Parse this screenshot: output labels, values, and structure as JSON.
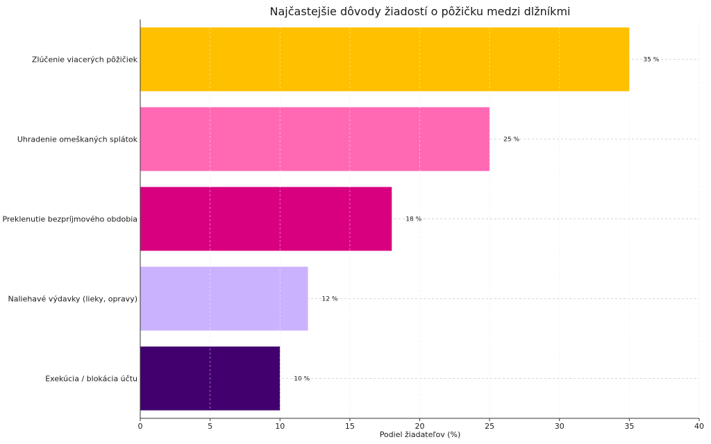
{
  "chart_data": {
    "type": "bar",
    "orientation": "horizontal",
    "title": "Najčastejšie dôvody žiadostí o pôžičku medzi dlžníkmi",
    "xlabel": "Podiel žiadateľov (%)",
    "ylabel": "",
    "xlim": [
      0,
      40
    ],
    "xticks": [
      0,
      5,
      10,
      15,
      20,
      25,
      30,
      35,
      40
    ],
    "grid": true,
    "legend": "none",
    "categories": [
      "Zlúčenie viacerých pôžičiek",
      "Uhradenie omeškaných splátok",
      "Preklenutie bezpríjmového obdobia",
      "Naliehavé výdavky (lieky, opravy)",
      "Exekúcia / blokácia účtu"
    ],
    "values": [
      35,
      25,
      18,
      12,
      10
    ],
    "data_labels": [
      "35 %",
      "25 %",
      "18 %",
      "12 %",
      "10 %"
    ],
    "colors": [
      "#ffc000",
      "#ff69b4",
      "#d90080",
      "#cbb2ff",
      "#42006f"
    ]
  }
}
